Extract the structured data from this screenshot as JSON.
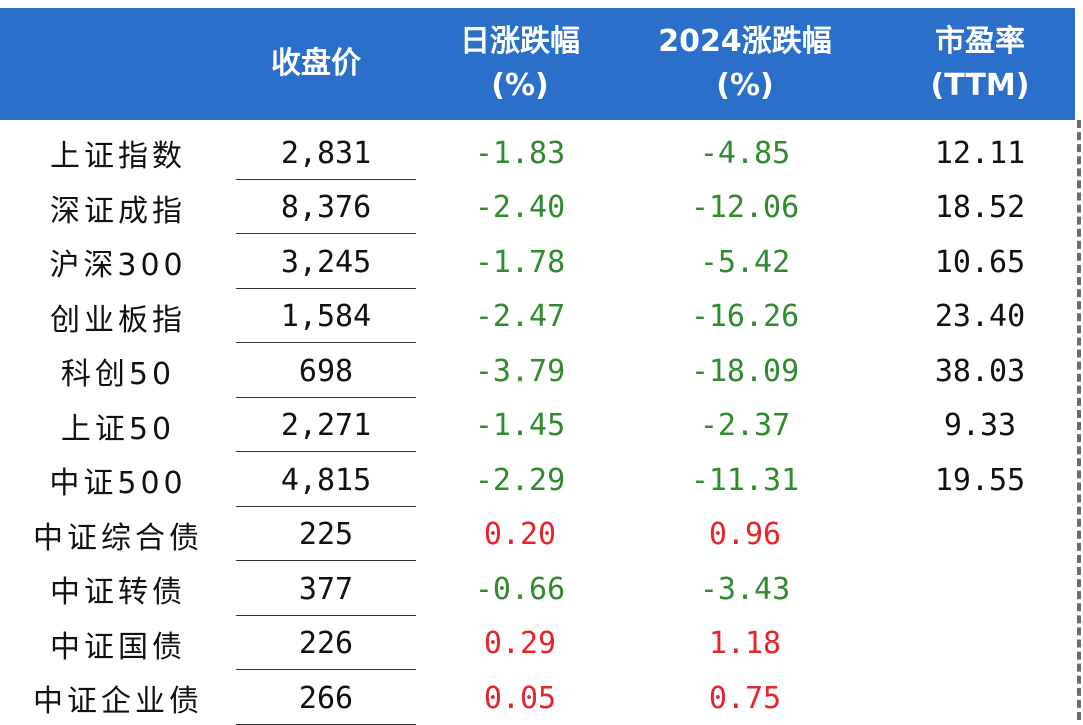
{
  "columns": {
    "close": "收盘价",
    "daily_line1": "日涨跌幅",
    "daily_line2": "(%)",
    "ytd_line1": "2024涨跌幅",
    "ytd_line2": "(%)",
    "pe_line1": "市盈率",
    "pe_line2": "(TTM)"
  },
  "rows": [
    {
      "name": "上证指数",
      "close": "2,831",
      "daily": "-1.83",
      "daily_sign": "neg",
      "ytd": "-4.85",
      "ytd_sign": "neg",
      "pe": "12.11"
    },
    {
      "name": "深证成指",
      "close": "8,376",
      "daily": "-2.40",
      "daily_sign": "neg",
      "ytd": "-12.06",
      "ytd_sign": "neg",
      "pe": "18.52"
    },
    {
      "name": "沪深300",
      "close": "3,245",
      "daily": "-1.78",
      "daily_sign": "neg",
      "ytd": "-5.42",
      "ytd_sign": "neg",
      "pe": "10.65"
    },
    {
      "name": "创业板指",
      "close": "1,584",
      "daily": "-2.47",
      "daily_sign": "neg",
      "ytd": "-16.26",
      "ytd_sign": "neg",
      "pe": "23.40"
    },
    {
      "name": "科创50",
      "close": "698",
      "daily": "-3.79",
      "daily_sign": "neg",
      "ytd": "-18.09",
      "ytd_sign": "neg",
      "pe": "38.03"
    },
    {
      "name": "上证50",
      "close": "2,271",
      "daily": "-1.45",
      "daily_sign": "neg",
      "ytd": "-2.37",
      "ytd_sign": "neg",
      "pe": "9.33"
    },
    {
      "name": "中证500",
      "close": "4,815",
      "daily": "-2.29",
      "daily_sign": "neg",
      "ytd": "-11.31",
      "ytd_sign": "neg",
      "pe": "19.55"
    },
    {
      "name": "中证综合债",
      "close": "225",
      "daily": "0.20",
      "daily_sign": "pos",
      "ytd": "0.96",
      "ytd_sign": "pos",
      "pe": ""
    },
    {
      "name": "中证转债",
      "close": "377",
      "daily": "-0.66",
      "daily_sign": "neg",
      "ytd": "-3.43",
      "ytd_sign": "neg",
      "pe": ""
    },
    {
      "name": "中证国债",
      "close": "226",
      "daily": "0.29",
      "daily_sign": "pos",
      "ytd": "1.18",
      "ytd_sign": "pos",
      "pe": ""
    },
    {
      "name": "中证企业债",
      "close": "266",
      "daily": "0.05",
      "daily_sign": "pos",
      "ytd": "0.75",
      "ytd_sign": "pos",
      "pe": ""
    }
  ],
  "colors": {
    "header_bg": "#2a6fc9",
    "negative": "#2e8b2e",
    "positive": "#e8232a"
  }
}
